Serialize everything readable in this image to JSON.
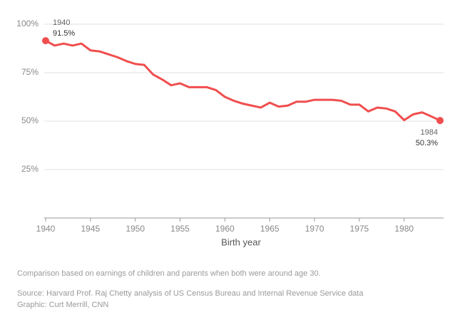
{
  "chart_data": {
    "type": "line",
    "x_label": "Birth year",
    "x": [
      1940,
      1941,
      1942,
      1943,
      1944,
      1945,
      1946,
      1947,
      1948,
      1949,
      1950,
      1951,
      1952,
      1953,
      1954,
      1955,
      1956,
      1957,
      1958,
      1959,
      1960,
      1961,
      1962,
      1963,
      1964,
      1965,
      1966,
      1967,
      1968,
      1969,
      1970,
      1971,
      1972,
      1973,
      1974,
      1975,
      1976,
      1977,
      1978,
      1979,
      1980,
      1981,
      1982,
      1983,
      1984
    ],
    "series": [
      {
        "color": "#f04e4e",
        "values": [
          91.5,
          89,
          90,
          89,
          90,
          86.5,
          86,
          84.5,
          83,
          81,
          79.5,
          79,
          74,
          71.5,
          68.5,
          69.5,
          67.5,
          67.5,
          67.5,
          66,
          62.5,
          60.5,
          59,
          58,
          57,
          59.5,
          57.5,
          58,
          60,
          60,
          61,
          61,
          61,
          60.5,
          58.5,
          58.5,
          55,
          57,
          56.5,
          55,
          50.5,
          53.5,
          54.5,
          52.5,
          50.3
        ],
        "value_labels": [
          "91.5%",
          null,
          null,
          null,
          null,
          null,
          null,
          null,
          null,
          null,
          null,
          null,
          null,
          null,
          null,
          null,
          null,
          null,
          null,
          null,
          null,
          null,
          null,
          null,
          null,
          null,
          null,
          null,
          null,
          null,
          null,
          null,
          null,
          null,
          null,
          null,
          null,
          null,
          null,
          null,
          null,
          null,
          null,
          null,
          "50.3%"
        ]
      }
    ],
    "xlim": [
      1940,
      1984
    ],
    "xticks": [
      1940,
      1945,
      1950,
      1955,
      1960,
      1965,
      1970,
      1975,
      1980
    ],
    "ylim": [
      0,
      100
    ],
    "yticks": [
      {
        "value": 25,
        "label": "25%"
      },
      {
        "value": 50,
        "label": "50%"
      },
      {
        "value": 75,
        "label": "75%"
      },
      {
        "value": 100,
        "label": "100%"
      }
    ],
    "grid": true,
    "notes": [
      "Comparison based on earnings of children and parents when both were around age 30.",
      "Source: Harvard Prof. Raj Chetty analysis of US Census Bureau and Internal Revenue Service data",
      "Graphic: Curt Merrill, CNN"
    ]
  }
}
